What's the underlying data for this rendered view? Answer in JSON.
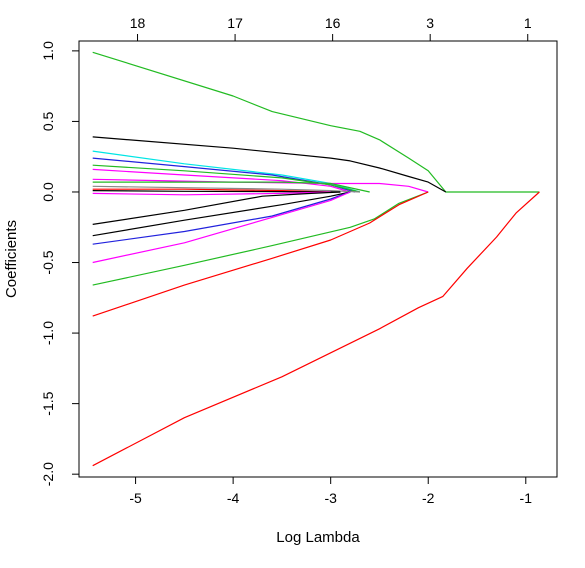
{
  "chart_data": {
    "type": "line",
    "title": "",
    "xlabel": "Log Lambda",
    "ylabel": "Coefficients",
    "xlim": [
      -5.58,
      -0.68
    ],
    "ylim": [
      -2.02,
      1.07
    ],
    "grid": false,
    "legend": "none",
    "x_ticks": [
      -5,
      -4,
      -3,
      -2,
      -1
    ],
    "x_tick_labels": [
      "-5",
      "-4",
      "-3",
      "-2",
      "-1"
    ],
    "y_ticks": [
      -2.0,
      -1.5,
      -1.0,
      -0.5,
      0.0,
      0.5,
      1.0
    ],
    "y_tick_labels": [
      "-2.0",
      "-1.5",
      "-1.0",
      "-0.5",
      "0.0",
      "0.5",
      "1.0"
    ],
    "top_axis": {
      "positions": [
        -4.98,
        -3.98,
        -2.98,
        -1.98,
        -0.98
      ],
      "labels": [
        "18",
        "17",
        "16",
        "3",
        "1"
      ]
    },
    "series": [
      {
        "color": "#22bb22",
        "x": [
          -5.44,
          -4.0,
          -3.6,
          -3.0,
          -2.7,
          -2.5,
          -2.2,
          -2.0,
          -1.82,
          -0.86
        ],
        "y": [
          0.99,
          0.68,
          0.57,
          0.47,
          0.43,
          0.37,
          0.24,
          0.15,
          0.0,
          0.0
        ]
      },
      {
        "color": "#000000",
        "x": [
          -5.44,
          -4.0,
          -3.0,
          -2.8,
          -2.5,
          -2.2,
          -2.0,
          -1.82
        ],
        "y": [
          0.39,
          0.31,
          0.24,
          0.22,
          0.17,
          0.11,
          0.07,
          0.0
        ]
      },
      {
        "color": "#00e5e5",
        "x": [
          -5.44,
          -4.5,
          -3.5,
          -3.0,
          -2.7
        ],
        "y": [
          0.29,
          0.2,
          0.12,
          0.06,
          0.0
        ]
      },
      {
        "color": "#2222dd",
        "x": [
          -5.44,
          -4.5,
          -3.6,
          -3.0,
          -2.75
        ],
        "y": [
          0.24,
          0.18,
          0.12,
          0.05,
          0.0
        ]
      },
      {
        "color": "#22bb22",
        "x": [
          -5.44,
          -4.5,
          -3.5,
          -3.0,
          -2.7
        ],
        "y": [
          0.19,
          0.15,
          0.1,
          0.05,
          0.0
        ]
      },
      {
        "color": "#ff00ff",
        "x": [
          -5.44,
          -4.5,
          -3.5,
          -3.0,
          -2.8
        ],
        "y": [
          0.16,
          0.12,
          0.08,
          0.04,
          0.0
        ]
      },
      {
        "color": "#ff00ff",
        "x": [
          -5.44,
          -4.0,
          -3.0,
          -2.5,
          -2.2,
          -2.0
        ],
        "y": [
          0.09,
          0.07,
          0.06,
          0.06,
          0.04,
          0.0
        ]
      },
      {
        "color": "#22bb22",
        "x": [
          -5.44,
          -4.0,
          -3.5,
          -3.0,
          -2.6
        ],
        "y": [
          0.07,
          0.07,
          0.07,
          0.06,
          0.0
        ]
      },
      {
        "color": "#888888",
        "x": [
          -5.44,
          -4.5,
          -3.5,
          -3.0,
          -2.7
        ],
        "y": [
          0.04,
          0.03,
          0.02,
          0.01,
          0.0
        ]
      },
      {
        "color": "#ff0000",
        "x": [
          -5.44,
          -4.5,
          -3.5,
          -3.0
        ],
        "y": [
          0.02,
          0.02,
          0.01,
          0.0
        ]
      },
      {
        "color": "#000000",
        "x": [
          -5.44,
          -4.5,
          -3.5,
          -2.9
        ],
        "y": [
          0.01,
          0.005,
          0.003,
          0.0
        ]
      },
      {
        "color": "#ff00ff",
        "x": [
          -5.44,
          -4.5,
          -3.5,
          -3.0
        ],
        "y": [
          -0.01,
          -0.02,
          -0.01,
          0.0
        ]
      },
      {
        "color": "#000000",
        "x": [
          -5.44,
          -4.5,
          -3.7,
          -3.2,
          -2.9
        ],
        "y": [
          -0.23,
          -0.13,
          -0.03,
          -0.01,
          0.0
        ]
      },
      {
        "color": "#000000",
        "x": [
          -5.44,
          -4.5,
          -3.5,
          -3.0,
          -2.8
        ],
        "y": [
          -0.31,
          -0.2,
          -0.09,
          -0.03,
          0.0
        ]
      },
      {
        "color": "#2222dd",
        "x": [
          -5.44,
          -4.5,
          -3.6,
          -3.0,
          -2.8
        ],
        "y": [
          -0.37,
          -0.28,
          -0.17,
          -0.05,
          0.0
        ]
      },
      {
        "color": "#ff00ff",
        "x": [
          -5.44,
          -4.5,
          -3.5,
          -3.0,
          -2.8
        ],
        "y": [
          -0.5,
          -0.36,
          -0.16,
          -0.06,
          0.0
        ]
      },
      {
        "color": "#22bb22",
        "x": [
          -5.44,
          -4.5,
          -3.6,
          -2.8,
          -2.55,
          -2.3,
          -2.0
        ],
        "y": [
          -0.66,
          -0.52,
          -0.38,
          -0.25,
          -0.19,
          -0.08,
          0.0
        ]
      },
      {
        "color": "#ff0000",
        "x": [
          -5.44,
          -4.5,
          -3.6,
          -3.0,
          -2.6,
          -2.3,
          -2.0
        ],
        "y": [
          -0.88,
          -0.66,
          -0.47,
          -0.34,
          -0.22,
          -0.09,
          0.0
        ]
      },
      {
        "color": "#ff0000",
        "x": [
          -5.44,
          -4.5,
          -3.5,
          -3.0,
          -2.5,
          -2.1,
          -1.85,
          -1.6,
          -1.3,
          -1.1,
          -0.86
        ],
        "y": [
          -1.94,
          -1.6,
          -1.31,
          -1.14,
          -0.97,
          -0.82,
          -0.74,
          -0.54,
          -0.32,
          -0.15,
          0.0
        ]
      }
    ]
  }
}
